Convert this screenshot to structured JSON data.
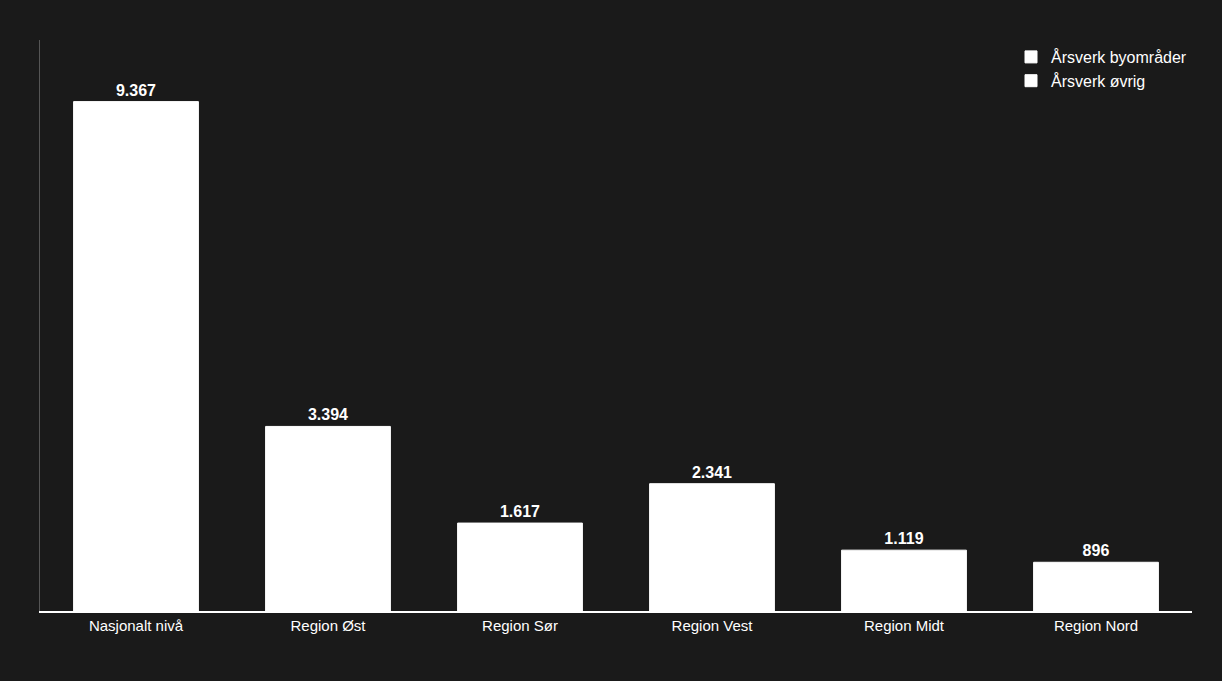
{
  "chart_data": {
    "type": "bar",
    "categories": [
      "Nasjonalt nivå",
      "Region Øst",
      "Region Sør",
      "Region Vest",
      "Region Midt",
      "Region Nord"
    ],
    "series": [
      {
        "name": "Årsverk byområder",
        "color": "#ffffff",
        "values": [
          9367,
          3394,
          1617,
          2341,
          1119,
          896
        ],
        "value_labels": [
          "9.367",
          "3.394",
          "1.617",
          "2.341",
          "1.119",
          "896"
        ]
      },
      {
        "name": "Årsverk øvrig",
        "color": "#ffffff",
        "values": [
          null,
          null,
          null,
          null,
          null,
          null
        ]
      }
    ],
    "ylim": [
      0,
      10500
    ],
    "data_labels": true,
    "tick_labels": "x",
    "grid": false,
    "legend": "upper right"
  }
}
